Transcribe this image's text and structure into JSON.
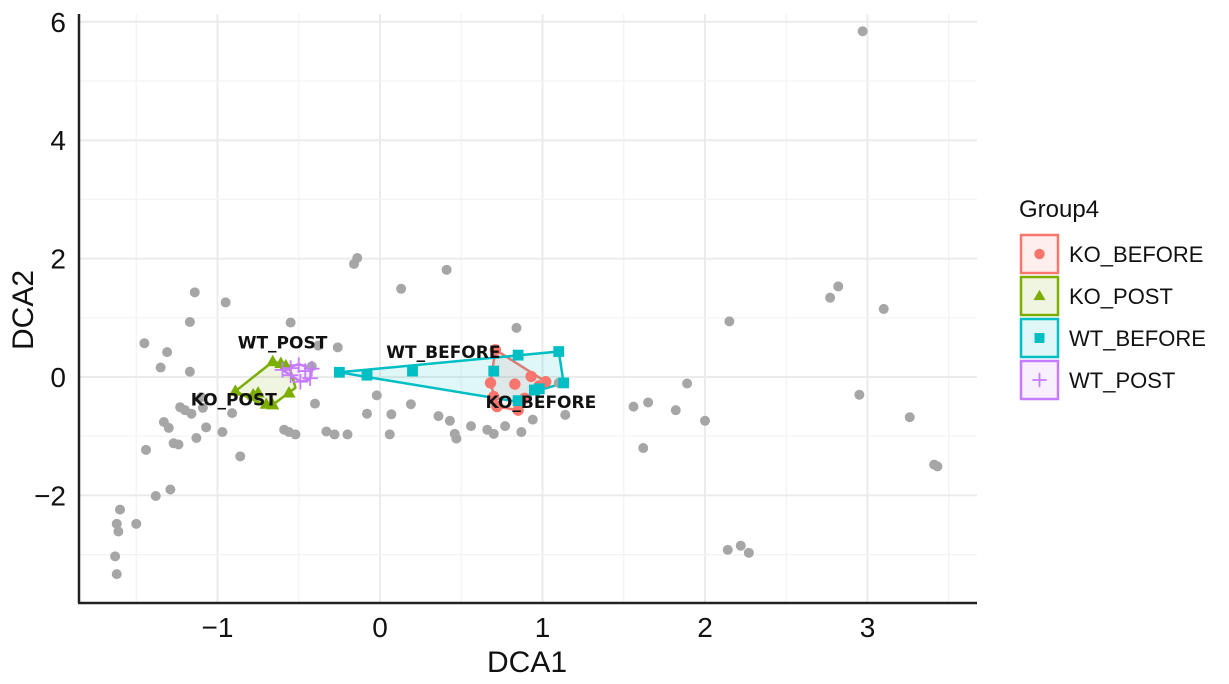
{
  "chart_data": {
    "type": "scatter",
    "title": "",
    "xlabel": "DCA1",
    "ylabel": "DCA2",
    "xlim": [
      -1.85,
      3.65
    ],
    "ylim": [
      -3.85,
      6.2
    ],
    "xticks": [
      -1,
      0,
      1,
      2,
      3
    ],
    "yticks": [
      -2,
      0,
      2,
      4,
      6
    ],
    "xtick_labels": [
      "−1",
      "0",
      "1",
      "2",
      "3"
    ],
    "ytick_labels": [
      "−2",
      "0",
      "2",
      "4",
      "6"
    ],
    "grid": true,
    "legend": {
      "title": "Group4",
      "position": "right"
    },
    "background_points": {
      "color": "#a6a6a6",
      "points": [
        [
          2.97,
          5.84
        ],
        [
          -1.45,
          0.57
        ],
        [
          -1.31,
          0.42
        ],
        [
          -1.17,
          0.93
        ],
        [
          -1.14,
          1.43
        ],
        [
          -0.95,
          1.26
        ],
        [
          -1.35,
          0.16
        ],
        [
          -1.17,
          0.09
        ],
        [
          -1.23,
          -0.51
        ],
        [
          -1.2,
          -0.56
        ],
        [
          -1.16,
          -0.62
        ],
        [
          -1.09,
          -0.52
        ],
        [
          -1.1,
          -0.34
        ],
        [
          -1.3,
          -0.86
        ],
        [
          -1.33,
          -0.76
        ],
        [
          -1.24,
          -1.14
        ],
        [
          -1.27,
          -1.12
        ],
        [
          -1.13,
          -1.03
        ],
        [
          -1.07,
          -0.85
        ],
        [
          -0.97,
          -0.93
        ],
        [
          -0.91,
          -0.61
        ],
        [
          -0.86,
          -1.34
        ],
        [
          -1.29,
          -1.9
        ],
        [
          -1.38,
          -2.01
        ],
        [
          -1.44,
          -1.23
        ],
        [
          -1.6,
          -2.24
        ],
        [
          -1.62,
          -2.48
        ],
        [
          -1.61,
          -2.61
        ],
        [
          -1.5,
          -2.48
        ],
        [
          -1.63,
          -3.03
        ],
        [
          -1.62,
          -3.33
        ],
        [
          -0.55,
          0.92
        ],
        [
          -0.56,
          -0.93
        ],
        [
          -0.52,
          -0.97
        ],
        [
          -0.4,
          -0.45
        ],
        [
          -0.33,
          -0.92
        ],
        [
          -0.28,
          -0.97
        ],
        [
          -0.26,
          0.5
        ],
        [
          -0.2,
          -0.97
        ],
        [
          -0.08,
          -0.62
        ],
        [
          0.06,
          -0.97
        ],
        [
          -0.16,
          1.91
        ],
        [
          -0.14,
          2.01
        ],
        [
          0.13,
          1.49
        ],
        [
          0.41,
          1.81
        ],
        [
          0.19,
          -0.46
        ],
        [
          0.07,
          -0.63
        ],
        [
          -0.42,
          0.18
        ],
        [
          -0.38,
          0.53
        ],
        [
          0.36,
          -0.66
        ],
        [
          0.43,
          -0.74
        ],
        [
          0.46,
          -0.96
        ],
        [
          0.47,
          -1.04
        ],
        [
          0.56,
          -0.83
        ],
        [
          0.66,
          -0.89
        ],
        [
          0.7,
          -0.96
        ],
        [
          0.84,
          0.83
        ],
        [
          0.77,
          -0.83
        ],
        [
          0.87,
          -0.93
        ],
        [
          0.94,
          -0.72
        ],
        [
          1.1,
          -0.1
        ],
        [
          1.14,
          -0.64
        ],
        [
          1.56,
          -0.5
        ],
        [
          1.65,
          -0.43
        ],
        [
          1.62,
          -1.2
        ],
        [
          1.82,
          -0.56
        ],
        [
          1.89,
          -0.11
        ],
        [
          2.0,
          -0.74
        ],
        [
          2.15,
          0.94
        ],
        [
          2.14,
          -2.92
        ],
        [
          2.22,
          -2.85
        ],
        [
          2.27,
          -2.97
        ],
        [
          2.77,
          1.34
        ],
        [
          2.82,
          1.53
        ],
        [
          3.1,
          1.15
        ],
        [
          2.95,
          -0.3
        ],
        [
          3.26,
          -0.68
        ],
        [
          3.43,
          -1.51
        ],
        [
          3.41,
          -1.48
        ],
        [
          -0.59,
          -0.89
        ],
        [
          -0.02,
          -0.31
        ]
      ]
    },
    "series": [
      {
        "name": "KO_BEFORE",
        "color": "#f8766d",
        "shape": "circle",
        "label": "KO_BEFORE",
        "points": [
          [
            0.71,
            0.46
          ],
          [
            0.68,
            -0.1
          ],
          [
            0.7,
            -0.33
          ],
          [
            0.85,
            -0.56
          ],
          [
            0.83,
            -0.12
          ],
          [
            0.98,
            -0.15
          ],
          [
            1.02,
            -0.08
          ],
          [
            0.93,
            0.01
          ],
          [
            0.72,
            -0.5
          ],
          [
            0.89,
            -0.36
          ]
        ],
        "hull": [
          [
            0.71,
            0.46
          ],
          [
            1.02,
            -0.08
          ],
          [
            0.98,
            -0.15
          ],
          [
            0.85,
            -0.56
          ],
          [
            0.72,
            -0.5
          ],
          [
            0.68,
            -0.1
          ]
        ]
      },
      {
        "name": "KO_POST",
        "color": "#7cae00",
        "shape": "triangle",
        "label": "KO_POST",
        "points": [
          [
            -0.66,
            0.26
          ],
          [
            -0.61,
            0.23
          ],
          [
            -0.89,
            -0.24
          ],
          [
            -0.75,
            -0.27
          ],
          [
            -0.7,
            -0.46
          ],
          [
            -0.66,
            -0.47
          ],
          [
            -0.56,
            -0.27
          ],
          [
            -0.78,
            -0.3
          ],
          [
            -0.58,
            0.19
          ]
        ],
        "hull": [
          [
            -0.66,
            0.26
          ],
          [
            -0.56,
            0.19
          ],
          [
            -0.52,
            -0.18
          ],
          [
            -0.66,
            -0.47
          ],
          [
            -0.7,
            -0.49
          ],
          [
            -0.89,
            -0.24
          ]
        ]
      },
      {
        "name": "WT_BEFORE",
        "color": "#00bfc4",
        "shape": "square",
        "label": "WT_BEFORE",
        "points": [
          [
            -0.25,
            0.08
          ],
          [
            -0.08,
            0.03
          ],
          [
            0.2,
            0.1
          ],
          [
            0.85,
            0.37
          ],
          [
            1.1,
            0.43
          ],
          [
            0.7,
            0.1
          ],
          [
            0.95,
            -0.22
          ],
          [
            0.98,
            -0.2
          ],
          [
            1.13,
            -0.1
          ],
          [
            0.85,
            -0.4
          ]
        ],
        "hull": [
          [
            -0.25,
            0.08
          ],
          [
            1.1,
            0.43
          ],
          [
            1.13,
            -0.1
          ],
          [
            0.95,
            -0.25
          ],
          [
            0.85,
            -0.42
          ],
          [
            -0.08,
            0.0
          ]
        ]
      },
      {
        "name": "WT_POST",
        "color": "#c77cff",
        "shape": "plus",
        "label": "WT_POST",
        "points": [
          [
            -0.6,
            0.12
          ],
          [
            -0.55,
            0.15
          ],
          [
            -0.5,
            0.2
          ],
          [
            -0.46,
            0.1
          ],
          [
            -0.43,
            -0.02
          ],
          [
            -0.49,
            -0.08
          ],
          [
            -0.55,
            0.03
          ],
          [
            -0.42,
            0.14
          ]
        ],
        "hull": [
          [
            -0.6,
            0.12
          ],
          [
            -0.5,
            0.22
          ],
          [
            -0.42,
            0.14
          ],
          [
            -0.43,
            -0.04
          ],
          [
            -0.49,
            -0.08
          ]
        ]
      }
    ],
    "group_labels": [
      {
        "text": "WT_POST",
        "x": -0.6,
        "y": 0.48
      },
      {
        "text": "WT_BEFORE",
        "x": 0.39,
        "y": 0.32
      },
      {
        "text": "KO_POST",
        "x": -0.9,
        "y": -0.48
      },
      {
        "text": "KO_BEFORE",
        "x": 0.99,
        "y": -0.52
      }
    ]
  }
}
